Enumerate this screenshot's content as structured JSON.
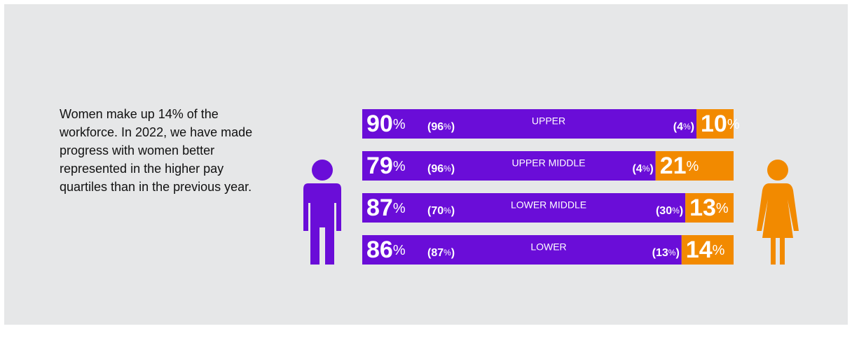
{
  "text": "Women make up 14% of the workforce. In 2022, we have made progress with women better represented in the higher pay quartiles than in the previous year.",
  "chart_data": {
    "type": "bar",
    "orientation": "horizontal",
    "stacked": true,
    "categories": [
      "UPPER",
      "UPPER MIDDLE",
      "LOWER MIDDLE",
      "LOWER"
    ],
    "series": [
      {
        "color": "#6a0dd8",
        "values": [
          90,
          79,
          87,
          86
        ],
        "previous": [
          96,
          96,
          70,
          87
        ]
      },
      {
        "color": "#f28a00",
        "values": [
          10,
          21,
          13,
          14
        ],
        "previous": [
          4,
          4,
          30,
          13
        ]
      }
    ],
    "unit": "%",
    "brackets": [
      "(",
      ")"
    ],
    "xlim": [
      0,
      100
    ]
  }
}
